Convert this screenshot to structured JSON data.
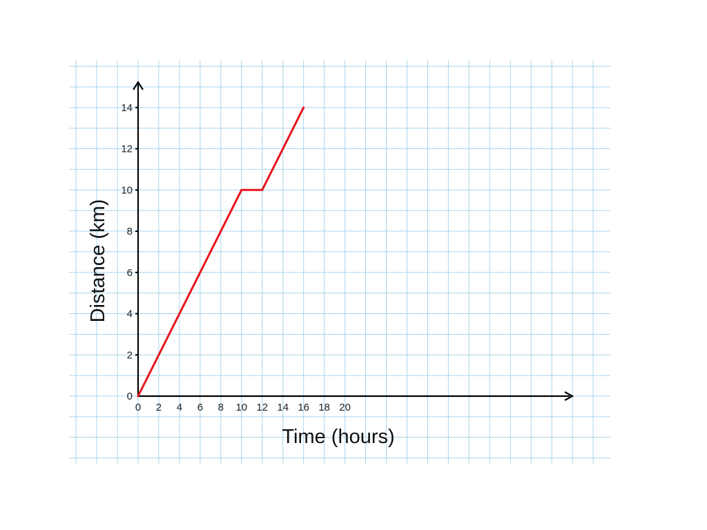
{
  "chart_data": {
    "type": "line",
    "title": "",
    "xlabel": "Time (hours)",
    "ylabel": "Distance (km)",
    "xlim": [
      0,
      20
    ],
    "ylim": [
      0,
      14
    ],
    "x_ticks": [
      "0",
      "2",
      "4",
      "6",
      "8",
      "10",
      "12",
      "14",
      "16",
      "18",
      "20"
    ],
    "y_ticks": [
      "0",
      "2",
      "4",
      "6",
      "8",
      "10",
      "12",
      "14"
    ],
    "grid": true,
    "legend": "none",
    "series": [
      {
        "x": [
          0,
          10,
          12,
          16
        ],
        "y": [
          0,
          10,
          10,
          14
        ],
        "color": "#e8141c"
      }
    ],
    "colors": {
      "grid": "#a9d4ec",
      "axis": "#000000",
      "line": "#e8141c"
    }
  }
}
